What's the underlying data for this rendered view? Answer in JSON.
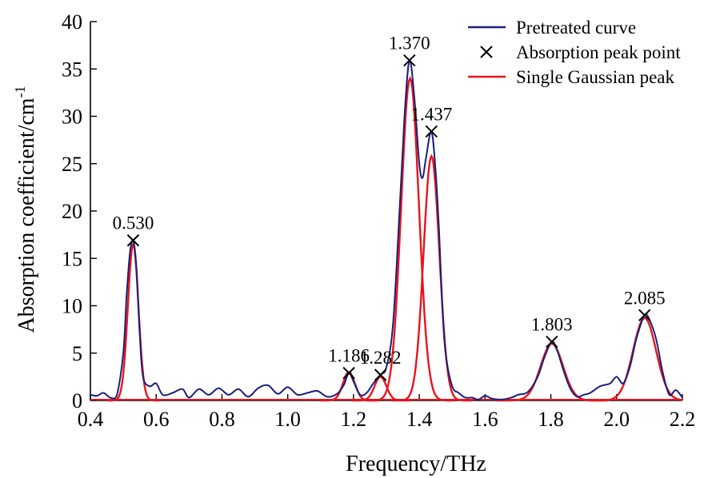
{
  "chart_data": {
    "type": "line",
    "xlabel": "Frequency/THz",
    "ylabel_text": "Absorption coefficient/cm",
    "ylabel_superscript": "-1",
    "xlim": [
      0.4,
      2.2
    ],
    "ylim": [
      0,
      40
    ],
    "x_ticks": [
      "0.4",
      "0.6",
      "0.8",
      "1.0",
      "1.2",
      "1.4",
      "1.6",
      "1.8",
      "2.0",
      "2.2"
    ],
    "y_ticks": [
      "0",
      "5",
      "10",
      "15",
      "20",
      "25",
      "30",
      "35",
      "40"
    ],
    "grid": false,
    "legend_position": "top-right",
    "colors": {
      "pretreated": "#1a1f7a",
      "gaussian": "#e8141c",
      "marker": "#000000"
    },
    "legend": [
      {
        "label": "Pretreated curve",
        "kind": "line",
        "color": "#1a1f7a"
      },
      {
        "label": "Absorption peak point",
        "kind": "x-marker",
        "color": "#000000"
      },
      {
        "label": "Single Gaussian peak",
        "kind": "line",
        "color": "#e8141c"
      }
    ],
    "peaks": [
      {
        "label": "0.530",
        "x": 0.53,
        "y": 16.9
      },
      {
        "label": "1.186",
        "x": 1.186,
        "y": 2.9
      },
      {
        "label": "1.282",
        "x": 1.282,
        "y": 2.7
      },
      {
        "label": "1.370",
        "x": 1.37,
        "y": 35.9
      },
      {
        "label": "1.437",
        "x": 1.437,
        "y": 28.4
      },
      {
        "label": "1.803",
        "x": 1.803,
        "y": 6.2
      },
      {
        "label": "2.085",
        "x": 2.085,
        "y": 9.0
      }
    ],
    "gaussian_peaks": [
      {
        "center": 0.53,
        "amplitude": 16.5,
        "sigma": 0.016
      },
      {
        "center": 1.186,
        "amplitude": 3.0,
        "sigma": 0.018
      },
      {
        "center": 1.282,
        "amplitude": 2.5,
        "sigma": 0.018
      },
      {
        "center": 1.372,
        "amplitude": 34.0,
        "sigma": 0.027
      },
      {
        "center": 1.437,
        "amplitude": 25.8,
        "sigma": 0.024
      },
      {
        "center": 1.803,
        "amplitude": 6.0,
        "sigma": 0.034
      },
      {
        "center": 2.085,
        "amplitude": 8.7,
        "sigma": 0.035
      }
    ],
    "series": [
      {
        "name": "Pretreated curve",
        "x": [
          0.4,
          0.42,
          0.44,
          0.46,
          0.48,
          0.5,
          0.51,
          0.52,
          0.53,
          0.54,
          0.55,
          0.56,
          0.58,
          0.6,
          0.62,
          0.65,
          0.68,
          0.7,
          0.73,
          0.76,
          0.79,
          0.82,
          0.85,
          0.88,
          0.91,
          0.94,
          0.97,
          1.0,
          1.03,
          1.06,
          1.09,
          1.12,
          1.15,
          1.17,
          1.186,
          1.2,
          1.22,
          1.24,
          1.26,
          1.282,
          1.3,
          1.32,
          1.34,
          1.355,
          1.37,
          1.385,
          1.4,
          1.41,
          1.42,
          1.437,
          1.45,
          1.46,
          1.47,
          1.48,
          1.5,
          1.52,
          1.54,
          1.56,
          1.58,
          1.6,
          1.62,
          1.65,
          1.68,
          1.7,
          1.73,
          1.76,
          1.78,
          1.803,
          1.82,
          1.84,
          1.86,
          1.88,
          1.9,
          1.92,
          1.95,
          1.98,
          2.0,
          2.02,
          2.04,
          2.06,
          2.085,
          2.1,
          2.12,
          2.14,
          2.16,
          2.18,
          2.2
        ],
        "y": [
          0.6,
          0.5,
          0.8,
          0.3,
          0.5,
          5.0,
          11.0,
          15.5,
          16.9,
          14.0,
          7.0,
          2.5,
          1.5,
          1.8,
          0.6,
          0.8,
          1.2,
          0.3,
          1.2,
          0.6,
          1.3,
          0.6,
          1.2,
          0.4,
          1.3,
          1.6,
          0.7,
          1.4,
          0.6,
          0.8,
          1.0,
          0.4,
          0.7,
          1.6,
          2.9,
          2.0,
          0.6,
          0.8,
          1.8,
          2.7,
          3.5,
          8.0,
          20.0,
          30.0,
          35.9,
          32.0,
          25.0,
          23.5,
          25.5,
          28.4,
          24.0,
          18.0,
          10.0,
          5.0,
          1.5,
          0.8,
          0.3,
          0.3,
          0.1,
          0.5,
          0.2,
          0.1,
          0.3,
          0.6,
          0.9,
          2.5,
          4.5,
          6.2,
          5.2,
          3.0,
          1.2,
          0.4,
          0.6,
          0.8,
          1.5,
          1.8,
          2.5,
          1.8,
          3.5,
          6.5,
          9.0,
          8.5,
          6.5,
          3.0,
          0.6,
          1.1,
          0.3
        ]
      }
    ]
  }
}
